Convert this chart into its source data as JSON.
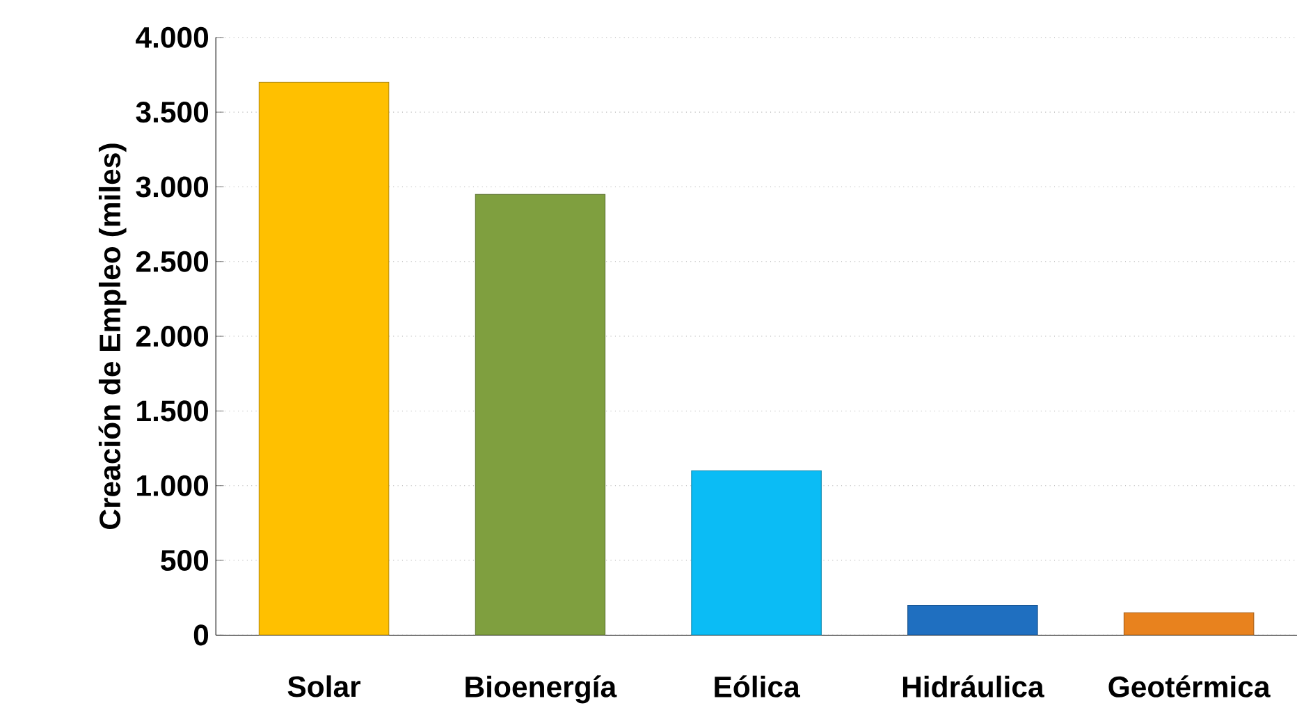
{
  "chart_data": {
    "type": "bar",
    "ylabel": "Creación de Empleo (miles)",
    "categories": [
      "Solar",
      "Bioenergía",
      "Eólica",
      "Hidráulica",
      "Geotérmica"
    ],
    "values": [
      3700,
      2950,
      1100,
      200,
      150
    ],
    "colors": [
      "#ffc000",
      "#7f9f3f",
      "#0bbcf5",
      "#1f6fc0",
      "#e8821e"
    ],
    "ylim": [
      0,
      4000
    ],
    "yticks": [
      {
        "value": 0,
        "label": "0"
      },
      {
        "value": 500,
        "label": "500"
      },
      {
        "value": 1000,
        "label": "1.000"
      },
      {
        "value": 1500,
        "label": "1.500"
      },
      {
        "value": 2000,
        "label": "2.000"
      },
      {
        "value": 2500,
        "label": "2.500"
      },
      {
        "value": 3000,
        "label": "3.000"
      },
      {
        "value": 3500,
        "label": "3.500"
      },
      {
        "value": 4000,
        "label": "4.000"
      }
    ],
    "grid": "y"
  }
}
